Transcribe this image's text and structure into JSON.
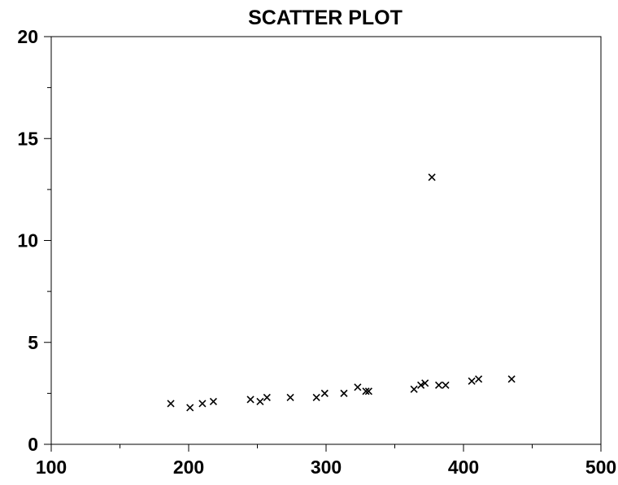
{
  "chart_data": {
    "type": "scatter",
    "title": "SCATTER PLOT",
    "xlabel": "",
    "ylabel": "",
    "xlim": [
      100,
      500
    ],
    "ylim": [
      0,
      20
    ],
    "x_ticks": [
      100,
      200,
      300,
      400,
      500
    ],
    "y_ticks": [
      0,
      5,
      10,
      15,
      20
    ],
    "x_tick_labels": [
      "100",
      "200",
      "300",
      "400",
      "500"
    ],
    "y_tick_labels": [
      "0",
      "5",
      "10",
      "15",
      "20"
    ],
    "x_minor_ticks": [
      150,
      250,
      350,
      450
    ],
    "y_minor_ticks": [
      2.5,
      7.5,
      12.5,
      17.5
    ],
    "grid": false,
    "marker": "x",
    "marker_color": "#000000",
    "points": [
      {
        "x": 187,
        "y": 2.0
      },
      {
        "x": 201,
        "y": 1.8
      },
      {
        "x": 210,
        "y": 2.0
      },
      {
        "x": 218,
        "y": 2.1
      },
      {
        "x": 245,
        "y": 2.2
      },
      {
        "x": 252,
        "y": 2.1
      },
      {
        "x": 257,
        "y": 2.3
      },
      {
        "x": 274,
        "y": 2.3
      },
      {
        "x": 293,
        "y": 2.3
      },
      {
        "x": 299,
        "y": 2.5
      },
      {
        "x": 313,
        "y": 2.5
      },
      {
        "x": 323,
        "y": 2.8
      },
      {
        "x": 329,
        "y": 2.6
      },
      {
        "x": 331,
        "y": 2.6
      },
      {
        "x": 364,
        "y": 2.7
      },
      {
        "x": 369,
        "y": 2.9
      },
      {
        "x": 372,
        "y": 3.0
      },
      {
        "x": 377,
        "y": 13.1
      },
      {
        "x": 382,
        "y": 2.9
      },
      {
        "x": 387,
        "y": 2.9
      },
      {
        "x": 406,
        "y": 3.1
      },
      {
        "x": 411,
        "y": 3.2
      },
      {
        "x": 435,
        "y": 3.2
      }
    ]
  }
}
